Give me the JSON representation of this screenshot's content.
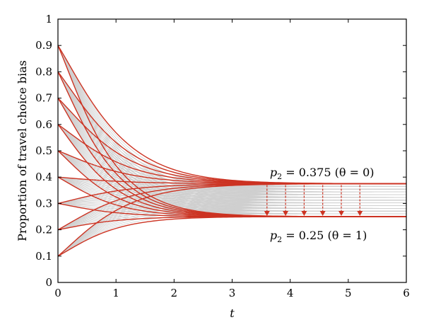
{
  "chart_data": {
    "type": "line",
    "xlabel": "t",
    "ylabel": "Proportion of travel choice bias",
    "xlim": [
      0,
      6
    ],
    "ylim": [
      0,
      1
    ],
    "xticks": [
      "0",
      "1",
      "2",
      "3",
      "4",
      "5",
      "6"
    ],
    "yticks": [
      "0",
      "0.1",
      "0.2",
      "0.3",
      "0.4",
      "0.5",
      "0.6",
      "0.7",
      "0.8",
      "0.9",
      "1"
    ],
    "grid": false,
    "colors": {
      "red": "#cc3322",
      "gray": "#cfcfcf",
      "arrow": "#cc3322"
    },
    "initial_values": [
      0.1,
      0.2,
      0.3,
      0.4,
      0.5,
      0.6,
      0.7,
      0.8,
      0.9
    ],
    "equilibria": [
      0.375,
      0.25
    ],
    "annotations": [
      {
        "p_label": "p",
        "sub": "2",
        "text": " = 0.375 (θ = 0)",
        "x": 3.65,
        "y": 0.42
      },
      {
        "p_label": "p",
        "sub": "2",
        "text": " = 0.25 (θ = 1)",
        "x": 3.65,
        "y": 0.18
      }
    ],
    "arrows": {
      "x": [
        3.6,
        3.92,
        4.24,
        4.56,
        4.88,
        5.2
      ],
      "from": 0.375,
      "to": 0.25
    }
  }
}
